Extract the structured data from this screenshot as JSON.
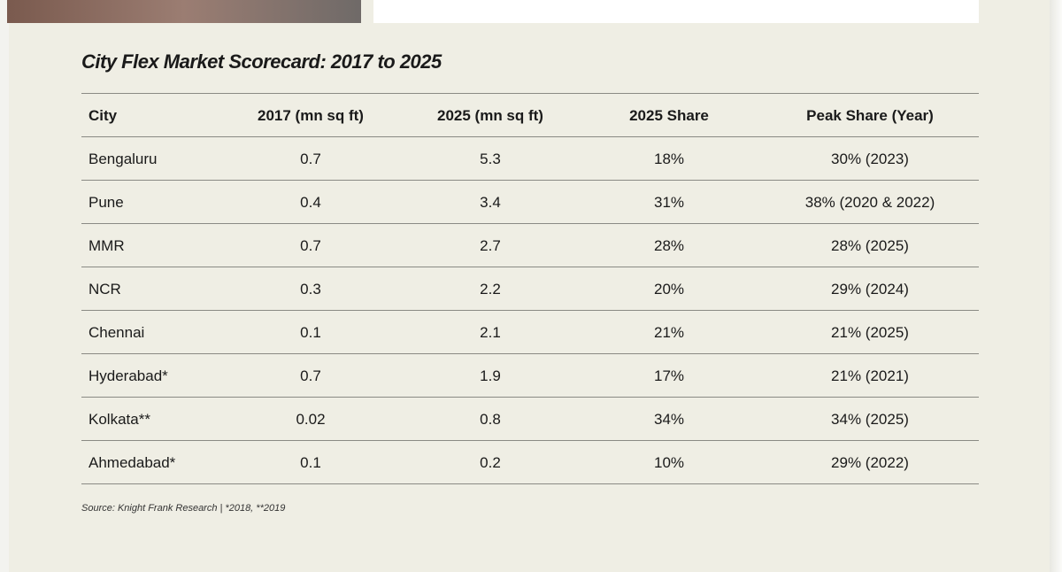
{
  "title": "City Flex Market Scorecard: 2017 to 2025",
  "table": {
    "header": [
      "City",
      "2017 (mn sq ft)",
      "2025 (mn sq ft)",
      "2025 Share",
      "Peak Share (Year)"
    ],
    "rows": [
      [
        "Bengaluru",
        "0.7",
        "5.3",
        "18%",
        "30% (2023)"
      ],
      [
        "Pune",
        "0.4",
        "3.4",
        "31%",
        "38% (2020 & 2022)"
      ],
      [
        "MMR",
        "0.7",
        "2.7",
        "28%",
        "28% (2025)"
      ],
      [
        "NCR",
        "0.3",
        "2.2",
        "20%",
        "29% (2024)"
      ],
      [
        "Chennai",
        "0.1",
        "2.1",
        "21%",
        "21% (2025)"
      ],
      [
        "Hyderabad*",
        "0.7",
        "1.9",
        "17%",
        "21% (2021)"
      ],
      [
        "Kolkata**",
        "0.02",
        "0.8",
        "34%",
        "34% (2025)"
      ],
      [
        "Ahmedabad*",
        "0.1",
        "0.2",
        "10%",
        "29% (2022)"
      ]
    ]
  },
  "source": "Source: Knight Frank Research | *2018, **2019"
}
